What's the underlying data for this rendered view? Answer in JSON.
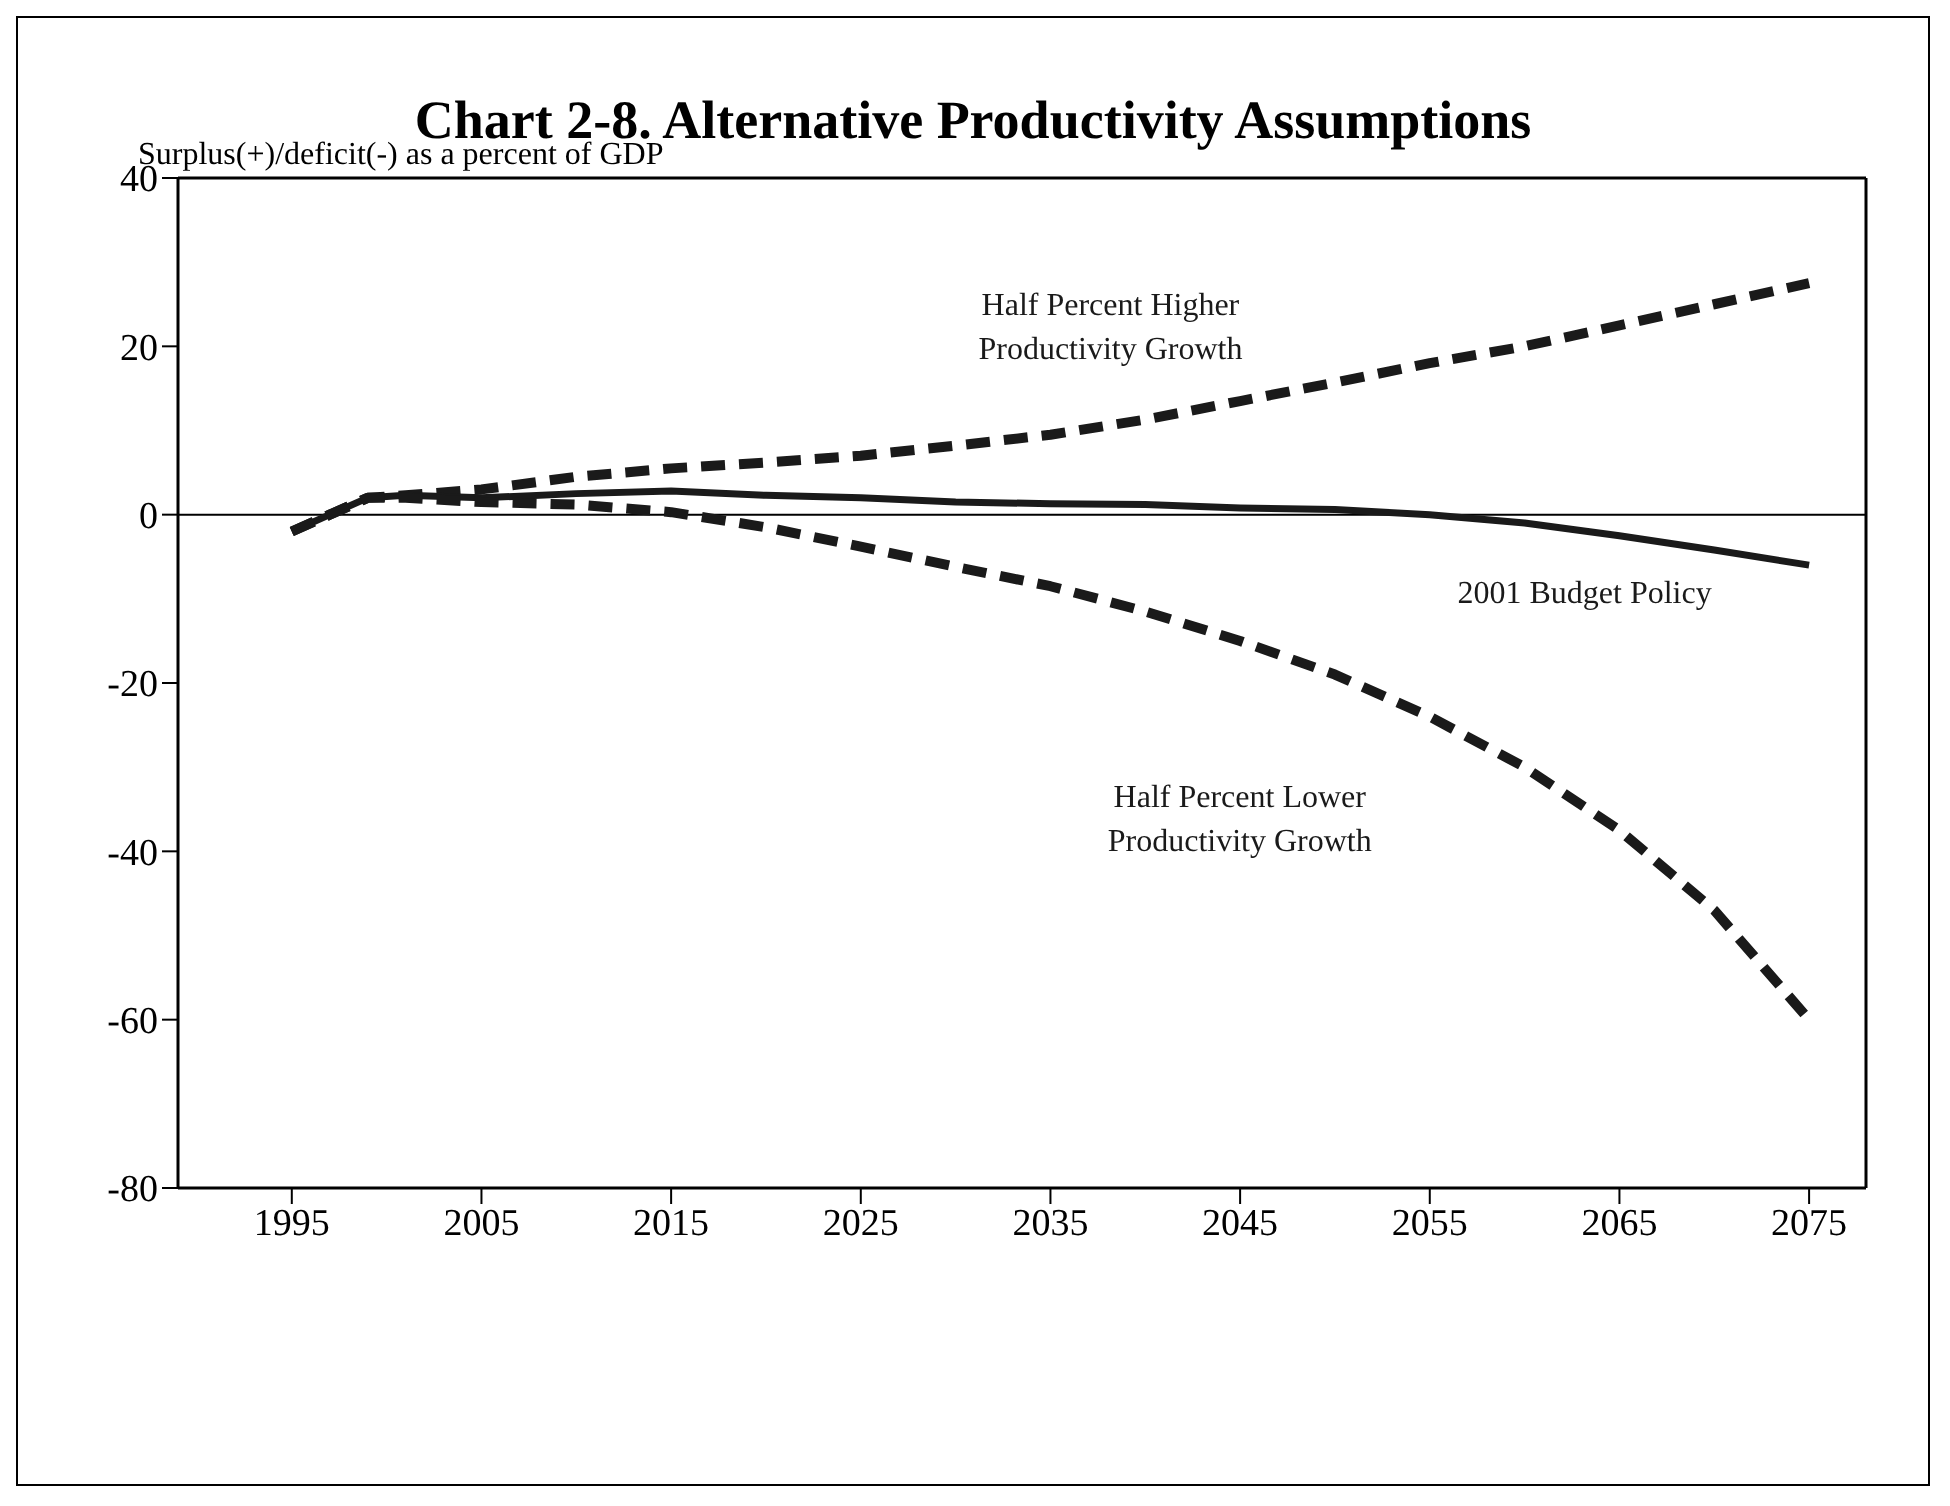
{
  "chart_data": {
    "type": "line",
    "title": "Chart 2-8.  Alternative Productivity Assumptions",
    "ylabel": "Surplus(+)/deficit(-) as a percent of GDP",
    "x": [
      1995,
      1997,
      1999,
      2001,
      2005,
      2010,
      2015,
      2020,
      2025,
      2030,
      2035,
      2040,
      2045,
      2050,
      2055,
      2060,
      2065,
      2070,
      2075
    ],
    "series": [
      {
        "name": "Half Percent Higher Productivity Growth",
        "color": "#1a1a1a",
        "line_style": "dashed",
        "values": [
          -2,
          0,
          2,
          2.3,
          3,
          4.5,
          5.5,
          6.2,
          7,
          8.2,
          9.5,
          11.3,
          13.5,
          15.7,
          18,
          20,
          22.5,
          25,
          27.5
        ]
      },
      {
        "name": "2001 Budget Policy",
        "color": "#1a1a1a",
        "line_style": "solid",
        "values": [
          -2,
          0,
          2,
          2.3,
          2,
          2.5,
          2.8,
          2.3,
          2,
          1.5,
          1.3,
          1.2,
          0.8,
          0.6,
          0,
          -1,
          -2.5,
          -4.2,
          -6
        ]
      },
      {
        "name": "Half Percent Lower Productivity Growth",
        "color": "#1a1a1a",
        "line_style": "dashed",
        "values": [
          -2,
          0,
          2,
          2,
          1.5,
          1.2,
          0.3,
          -1.5,
          -3.8,
          -6.2,
          -8.5,
          -11.5,
          -15,
          -19,
          -24,
          -30,
          -37.5,
          -47,
          -60
        ]
      }
    ],
    "xlim": [
      1989,
      2078
    ],
    "xticks": [
      1995,
      2005,
      2015,
      2025,
      2035,
      2045,
      2055,
      2065,
      2075
    ],
    "ylim": [
      -80,
      40
    ],
    "yticks": [
      -80,
      -60,
      -40,
      -20,
      0,
      20,
      40
    ],
    "ref_lines": [
      {
        "axis": "y",
        "value": 0,
        "color": "#000000"
      }
    ],
    "grid": false,
    "marker": "none"
  }
}
